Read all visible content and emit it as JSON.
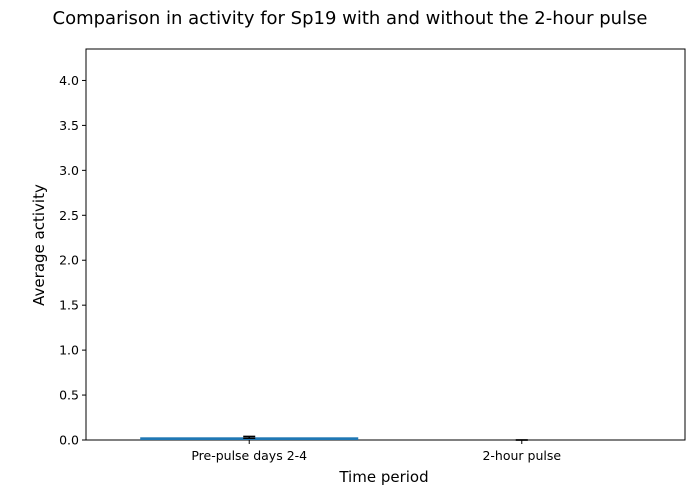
{
  "chart_data": {
    "type": "bar",
    "title": "Comparison in activity for Sp19 with and without the 2-hour pulse",
    "xlabel": "Time period",
    "ylabel": "Average activity",
    "categories": [
      "Pre-pulse days 2-4",
      "2-hour pulse"
    ],
    "values": [
      0.03,
      0.0
    ],
    "errors": [
      0.01,
      0.0
    ],
    "ylim": [
      0,
      4.35
    ],
    "yticks": [
      0.0,
      0.5,
      1.0,
      1.5,
      2.0,
      2.5,
      3.0,
      3.5,
      4.0
    ],
    "ytick_labels": [
      "0.0",
      "0.5",
      "1.0",
      "1.5",
      "2.0",
      "2.5",
      "3.0",
      "3.5",
      "4.0"
    ],
    "bar_color": "#1f77b4",
    "error_color": "#000000",
    "grid": false,
    "legend": "none"
  }
}
